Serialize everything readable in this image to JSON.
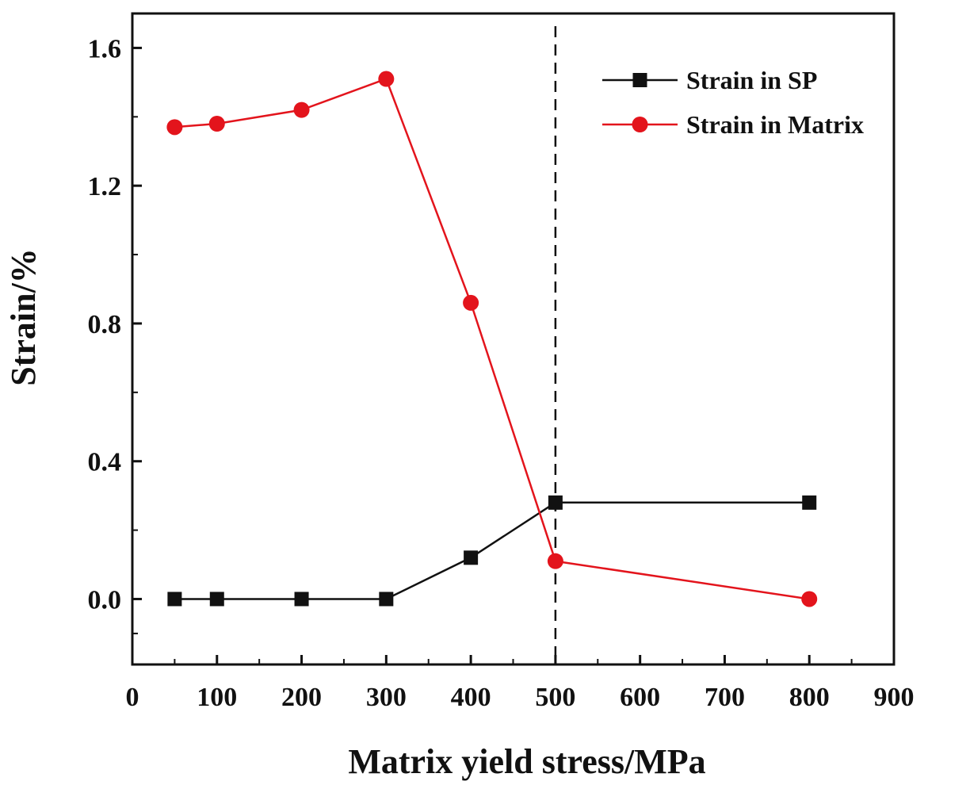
{
  "chart_data": {
    "type": "line",
    "xlabel": "Matrix yield stress/MPa",
    "ylabel": "Strain/%",
    "xlim": [
      0,
      900
    ],
    "ylim": [
      -0.19,
      1.7
    ],
    "xticks": [
      0,
      100,
      200,
      300,
      400,
      500,
      600,
      700,
      800,
      900
    ],
    "xtick_labels": [
      "0",
      "100",
      "200",
      "300",
      "400",
      "500",
      "600",
      "700",
      "800",
      "900"
    ],
    "yticks": [
      0.0,
      0.4,
      0.8,
      1.2,
      1.6
    ],
    "ytick_labels": [
      "0.0",
      "0.4",
      "0.8",
      "1.2",
      "1.6"
    ],
    "reference_line": {
      "x": 500,
      "style": "dashed"
    },
    "legend_position": "top-right",
    "series": [
      {
        "name": "Strain in SP",
        "color": "#111111",
        "marker": "square",
        "x": [
          50,
          100,
          200,
          300,
          400,
          500,
          800
        ],
        "y": [
          0.0,
          0.0,
          0.0,
          0.0,
          0.12,
          0.28,
          0.28
        ]
      },
      {
        "name": "Strain in Matrix",
        "color": "#e3141c",
        "marker": "circle",
        "x": [
          50,
          100,
          200,
          300,
          400,
          500,
          800
        ],
        "y": [
          1.37,
          1.38,
          1.42,
          1.51,
          0.86,
          0.11,
          0.0
        ]
      }
    ]
  }
}
